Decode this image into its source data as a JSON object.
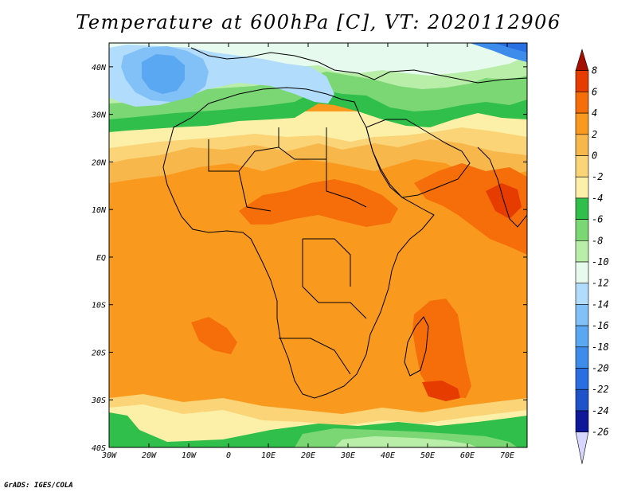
{
  "title": "Temperature at 600hPa [C], VT: 2020112906",
  "credit": "GrADS: IGES/COLA",
  "map": {
    "variable": "Temperature",
    "level": "600hPa",
    "units": "C",
    "lon_range": [
      -30,
      75
    ],
    "lat_range": [
      -40,
      45
    ],
    "lat_ticks": [
      {
        "label": "40N",
        "lat": 40
      },
      {
        "label": "30N",
        "lat": 30
      },
      {
        "label": "20N",
        "lat": 20
      },
      {
        "label": "10N",
        "lat": 10
      },
      {
        "label": "EQ",
        "lat": 0
      },
      {
        "label": "10S",
        "lat": -10
      },
      {
        "label": "20S",
        "lat": -20
      },
      {
        "label": "30S",
        "lat": -30
      },
      {
        "label": "40S",
        "lat": -40
      }
    ],
    "lon_ticks": [
      {
        "label": "30W",
        "lon": -30
      },
      {
        "label": "20W",
        "lon": -20
      },
      {
        "label": "10W",
        "lon": -10
      },
      {
        "label": "0",
        "lon": 0
      },
      {
        "label": "10E",
        "lon": 10
      },
      {
        "label": "20E",
        "lon": 20
      },
      {
        "label": "30E",
        "lon": 30
      },
      {
        "label": "40E",
        "lon": 40
      },
      {
        "label": "50E",
        "lon": 50
      },
      {
        "label": "60E",
        "lon": 60
      },
      {
        "label": "70E",
        "lon": 70
      }
    ]
  },
  "colorbar": {
    "bins": [
      {
        "label": "8",
        "color": "#a50f00"
      },
      {
        "label": "6",
        "color": "#e63c00"
      },
      {
        "label": "4",
        "color": "#f56e0a"
      },
      {
        "label": "2",
        "color": "#f99a1e"
      },
      {
        "label": "0",
        "color": "#f8b74b"
      },
      {
        "label": "-2",
        "color": "#fad477"
      },
      {
        "label": "-4",
        "color": "#fcf0a8"
      },
      {
        "label": "-6",
        "color": "#2fbf4a"
      },
      {
        "label": "-8",
        "color": "#7ad774"
      },
      {
        "label": "-10",
        "color": "#b9eea9"
      },
      {
        "label": "-12",
        "color": "#e6fbee"
      },
      {
        "label": "-14",
        "color": "#b2dcfc"
      },
      {
        "label": "-16",
        "color": "#82c1f7"
      },
      {
        "label": "-18",
        "color": "#5aa7f2"
      },
      {
        "label": "-20",
        "color": "#3d8ceb"
      },
      {
        "label": "-22",
        "color": "#2a6fe1"
      },
      {
        "label": "-24",
        "color": "#1d52c9"
      },
      {
        "label": "-26",
        "color": "#10189a"
      }
    ],
    "under_color": "#d6d6ff"
  }
}
